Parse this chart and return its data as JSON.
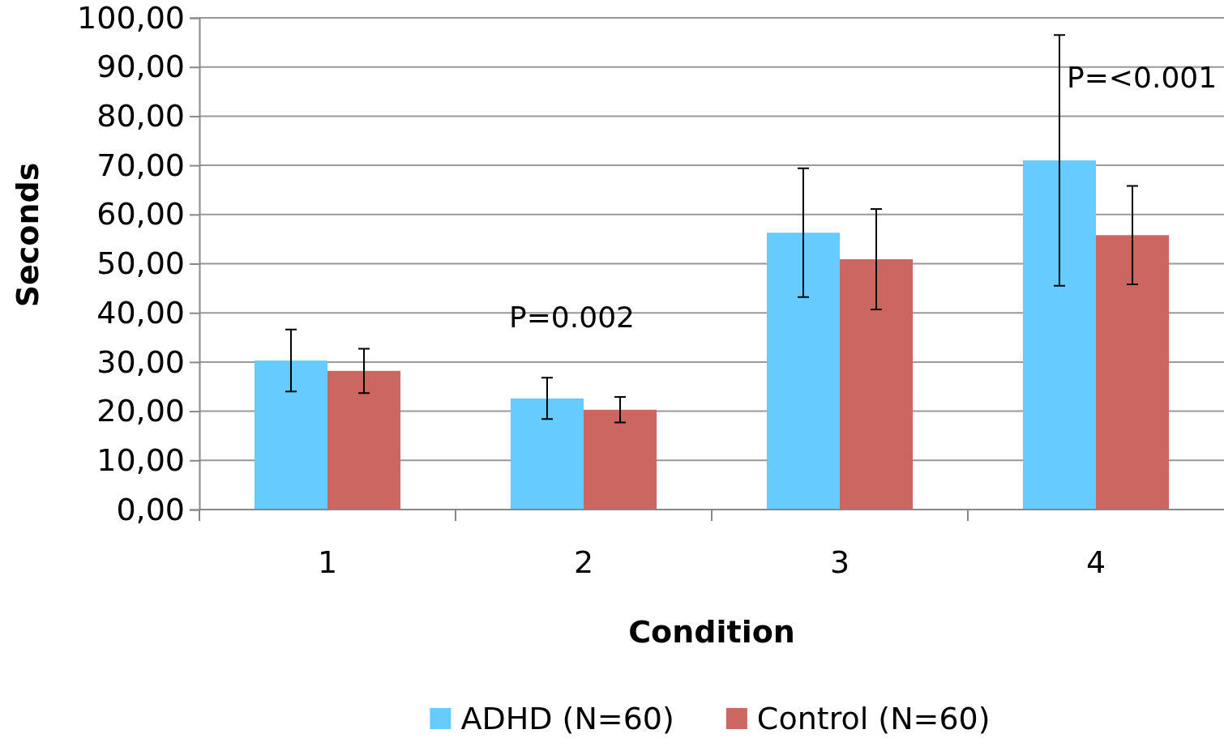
{
  "chart_data": {
    "type": "bar",
    "xlabel": "Condition",
    "ylabel": "Seconds",
    "categories": [
      "1",
      "2",
      "3",
      "4"
    ],
    "series": [
      {
        "name": "ADHD (N=60)",
        "color": "#66ccff",
        "values": [
          30.3,
          22.6,
          56.3,
          71.0
        ],
        "errors": [
          6.3,
          4.2,
          13.1,
          25.5
        ]
      },
      {
        "name": "Control (N=60)",
        "color": "#cc6660",
        "values": [
          28.2,
          20.3,
          50.9,
          55.8
        ],
        "errors": [
          4.5,
          2.6,
          10.2,
          10.0
        ]
      }
    ],
    "ylim": [
      0,
      100
    ],
    "yticks": [
      {
        "value": 0,
        "label": "0,00"
      },
      {
        "value": 10,
        "label": "10,00"
      },
      {
        "value": 20,
        "label": "20,00"
      },
      {
        "value": 30,
        "label": "30,00"
      },
      {
        "value": 40,
        "label": "40,00"
      },
      {
        "value": 50,
        "label": "50,00"
      },
      {
        "value": 60,
        "label": "60,00"
      },
      {
        "value": 70,
        "label": "70,00"
      },
      {
        "value": 80,
        "label": "80,00"
      },
      {
        "value": 90,
        "label": "90,00"
      },
      {
        "value": 100,
        "label": "100,00"
      }
    ],
    "grid": "y",
    "legend": "bottom",
    "annotations": [
      "P=0.002",
      "P=<0.001"
    ]
  }
}
